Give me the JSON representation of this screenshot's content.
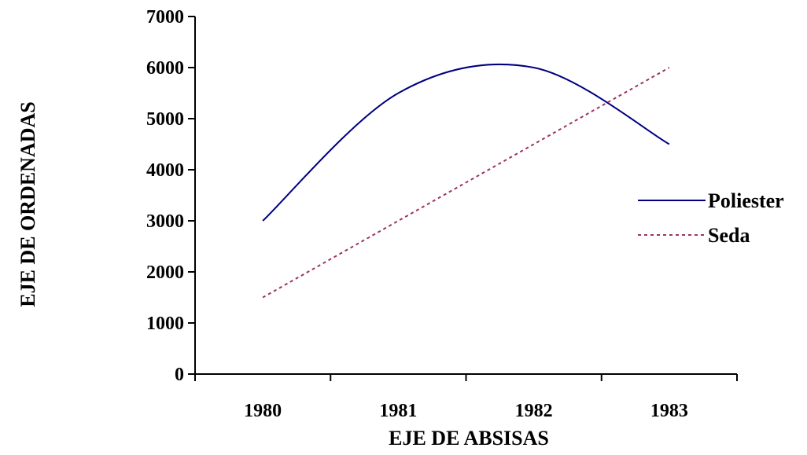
{
  "chart_data": {
    "type": "line",
    "title": "",
    "xlabel": "EJE DE ABSISAS",
    "ylabel": "EJE DE ORDENADAS",
    "categories": [
      "1980",
      "1981",
      "1982",
      "1983"
    ],
    "ylim": [
      0,
      7000
    ],
    "yticks": [
      0,
      1000,
      2000,
      3000,
      4000,
      5000,
      6000,
      7000
    ],
    "smooth": true,
    "grid": false,
    "legend_position": "right",
    "series": [
      {
        "name": "Poliester",
        "values": [
          3000,
          5500,
          6000,
          4500
        ],
        "color": "#000080",
        "style": "solid"
      },
      {
        "name": "Seda",
        "values": [
          1500,
          3000,
          4500,
          6000
        ],
        "color": "#993366",
        "style": "dotted"
      }
    ]
  }
}
